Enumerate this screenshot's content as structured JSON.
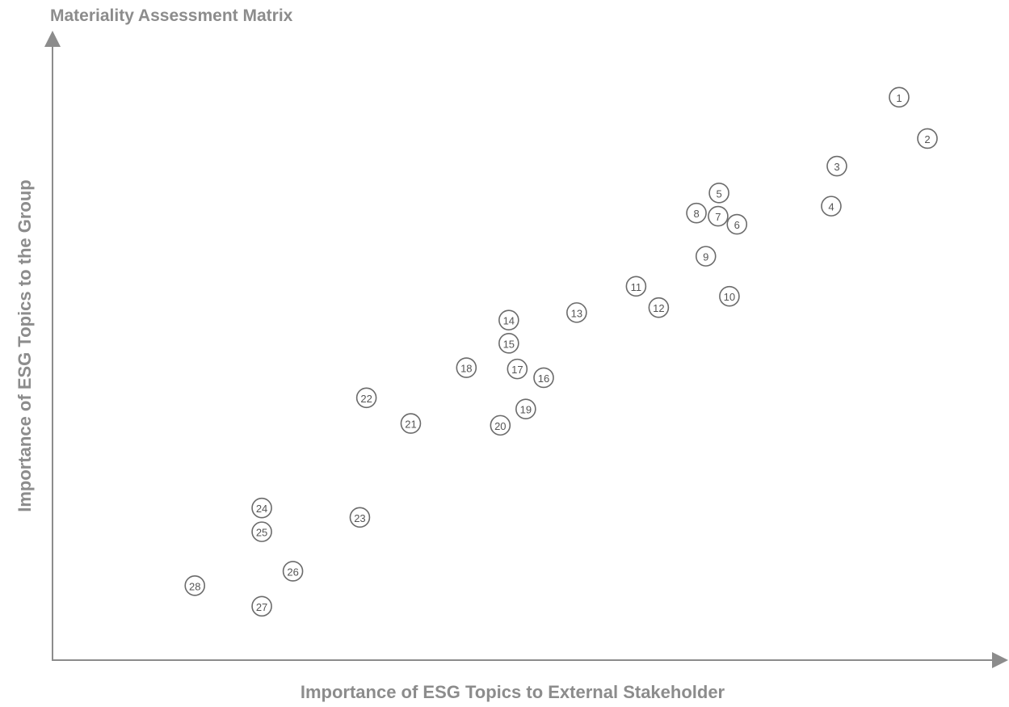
{
  "chart_data": {
    "type": "scatter",
    "title": "Materiality Assessment Matrix",
    "xlabel": "Importance of ESG Topics to External Stakeholder",
    "ylabel": "Importance of ESG Topics to the Group",
    "xlim": [
      0,
      100
    ],
    "ylim": [
      0,
      100
    ],
    "grid": false,
    "points": [
      {
        "label": "1",
        "x": 89.8,
        "y": 89.9
      },
      {
        "label": "2",
        "x": 92.8,
        "y": 83.3
      },
      {
        "label": "3",
        "x": 83.2,
        "y": 78.9
      },
      {
        "label": "4",
        "x": 82.6,
        "y": 72.5
      },
      {
        "label": "5",
        "x": 70.7,
        "y": 74.6
      },
      {
        "label": "6",
        "x": 72.6,
        "y": 69.6
      },
      {
        "label": "7",
        "x": 70.6,
        "y": 70.9
      },
      {
        "label": "8",
        "x": 68.3,
        "y": 71.4
      },
      {
        "label": "9",
        "x": 69.3,
        "y": 64.5
      },
      {
        "label": "10",
        "x": 71.8,
        "y": 58.1
      },
      {
        "label": "11",
        "x": 61.9,
        "y": 59.7
      },
      {
        "label": "12",
        "x": 64.3,
        "y": 56.3
      },
      {
        "label": "13",
        "x": 55.6,
        "y": 55.5
      },
      {
        "label": "14",
        "x": 48.4,
        "y": 54.3
      },
      {
        "label": "15",
        "x": 48.4,
        "y": 50.6
      },
      {
        "label": "16",
        "x": 52.1,
        "y": 45.1
      },
      {
        "label": "17",
        "x": 49.3,
        "y": 46.5
      },
      {
        "label": "18",
        "x": 43.9,
        "y": 46.7
      },
      {
        "label": "19",
        "x": 50.2,
        "y": 40.1
      },
      {
        "label": "20",
        "x": 47.5,
        "y": 37.5
      },
      {
        "label": "21",
        "x": 38.0,
        "y": 37.8
      },
      {
        "label": "22",
        "x": 33.3,
        "y": 41.9
      },
      {
        "label": "23",
        "x": 32.6,
        "y": 22.8
      },
      {
        "label": "24",
        "x": 22.2,
        "y": 24.3
      },
      {
        "label": "25",
        "x": 22.2,
        "y": 20.5
      },
      {
        "label": "26",
        "x": 25.5,
        "y": 14.2
      },
      {
        "label": "27",
        "x": 22.2,
        "y": 8.6
      },
      {
        "label": "28",
        "x": 15.1,
        "y": 11.9
      }
    ]
  }
}
